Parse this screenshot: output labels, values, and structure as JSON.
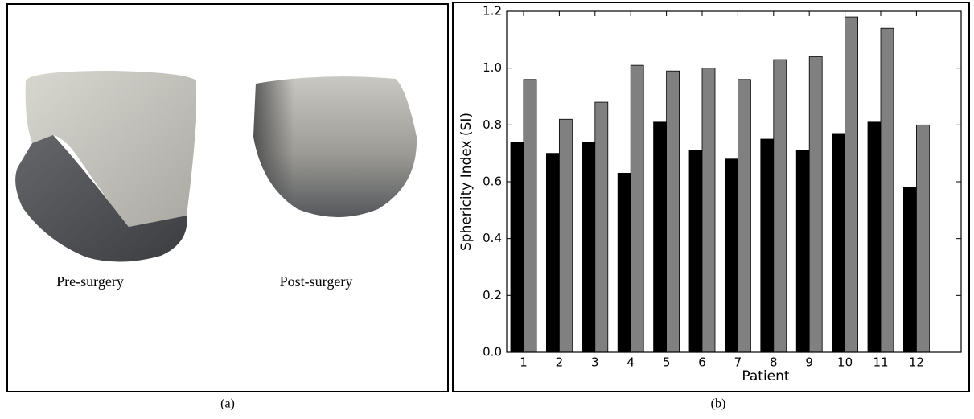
{
  "panel_a": {
    "labels": [
      "Pre-surgery",
      "Post-surgery"
    ],
    "caption": "(a)"
  },
  "panel_b": {
    "caption": "(b)"
  },
  "chart_data": {
    "type": "bar",
    "xlabel": "Patient",
    "ylabel": "Sphericity Index (SI)",
    "categories": [
      "1",
      "2",
      "3",
      "4",
      "5",
      "6",
      "7",
      "8",
      "9",
      "10",
      "11",
      "12"
    ],
    "series": [
      {
        "color": "#000000",
        "values": [
          0.74,
          0.7,
          0.74,
          0.63,
          0.81,
          0.71,
          0.68,
          0.75,
          0.71,
          0.77,
          0.81,
          0.58
        ]
      },
      {
        "color": "#808080",
        "values": [
          0.96,
          0.82,
          0.88,
          1.01,
          0.99,
          1.0,
          0.96,
          1.03,
          1.04,
          1.18,
          1.14,
          0.8
        ]
      }
    ],
    "ylim": [
      0,
      1.2
    ],
    "yticks": [
      {
        "value": 0,
        "label": "0.0"
      },
      {
        "value": 0.2,
        "label": "0.2"
      },
      {
        "value": 0.4,
        "label": "0.4"
      },
      {
        "value": 0.6,
        "label": "0.6"
      },
      {
        "value": 0.8,
        "label": "0.8"
      },
      {
        "value": 1,
        "label": "1.0"
      },
      {
        "value": 1.2,
        "label": "1.2"
      }
    ]
  }
}
